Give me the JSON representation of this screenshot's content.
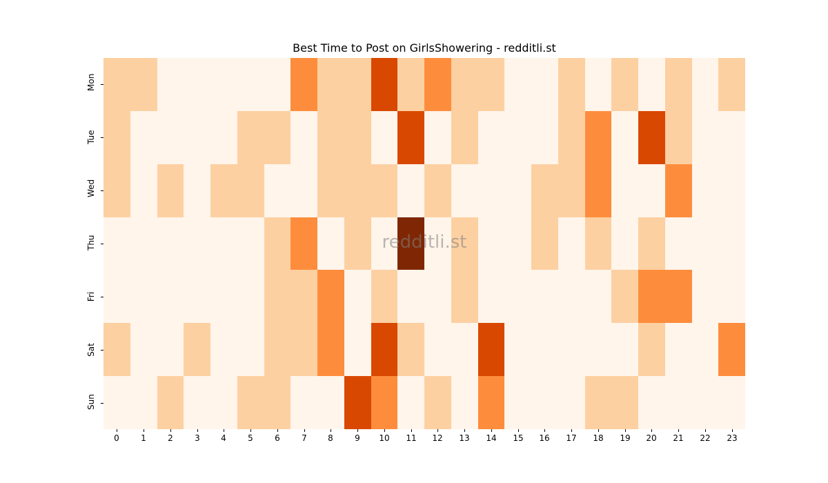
{
  "chart_data": {
    "type": "heatmap",
    "title": "Best Time to Post on GirlsShowering - redditli.st",
    "xlabel": "",
    "ylabel": "",
    "x": [
      "0",
      "1",
      "2",
      "3",
      "4",
      "5",
      "6",
      "7",
      "8",
      "9",
      "10",
      "11",
      "12",
      "13",
      "14",
      "15",
      "16",
      "17",
      "18",
      "19",
      "20",
      "21",
      "22",
      "23"
    ],
    "y": [
      "Mon",
      "Tue",
      "Wed",
      "Thu",
      "Fri",
      "Sat",
      "Sun"
    ],
    "colormap": "Oranges",
    "levels": 5,
    "level_colors": [
      "#fff5eb",
      "#fdd0a2",
      "#fd8d3c",
      "#d94801",
      "#7f2704"
    ],
    "values": [
      [
        1,
        1,
        0,
        0,
        0,
        0,
        0,
        2,
        1,
        1,
        3,
        1,
        2,
        1,
        1,
        0,
        0,
        1,
        0,
        1,
        0,
        1,
        0,
        1
      ],
      [
        1,
        0,
        0,
        0,
        0,
        1,
        1,
        0,
        1,
        1,
        0,
        3,
        0,
        1,
        0,
        0,
        0,
        1,
        2,
        0,
        3,
        1,
        0,
        0
      ],
      [
        1,
        0,
        1,
        0,
        1,
        1,
        0,
        0,
        1,
        1,
        1,
        0,
        1,
        0,
        0,
        0,
        1,
        1,
        2,
        0,
        0,
        2,
        0,
        0
      ],
      [
        0,
        0,
        0,
        0,
        0,
        0,
        1,
        2,
        0,
        1,
        0,
        4,
        0,
        1,
        0,
        0,
        1,
        0,
        1,
        0,
        1,
        0,
        0,
        0
      ],
      [
        0,
        0,
        0,
        0,
        0,
        0,
        1,
        1,
        2,
        0,
        1,
        0,
        0,
        1,
        0,
        0,
        0,
        0,
        0,
        1,
        2,
        2,
        0,
        0
      ],
      [
        1,
        0,
        0,
        1,
        0,
        0,
        1,
        1,
        2,
        0,
        3,
        1,
        0,
        0,
        3,
        0,
        0,
        0,
        0,
        0,
        1,
        0,
        0,
        2
      ],
      [
        0,
        0,
        1,
        0,
        0,
        1,
        1,
        0,
        0,
        3,
        2,
        0,
        1,
        0,
        2,
        0,
        0,
        0,
        1,
        1,
        0,
        0,
        0,
        0
      ]
    ],
    "colorbar": false,
    "watermark": "redditli.st"
  }
}
